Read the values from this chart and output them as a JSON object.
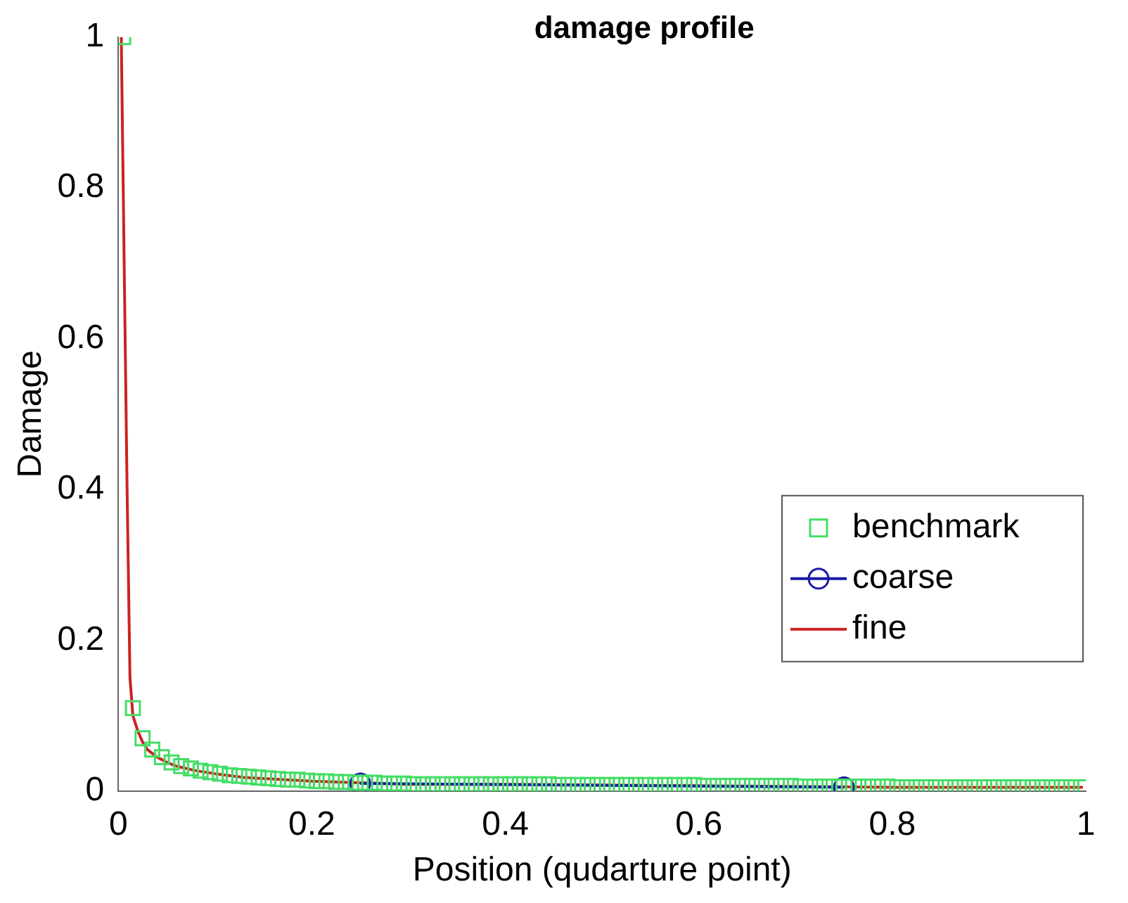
{
  "chart_data": {
    "type": "line",
    "title": "damage profile",
    "xlabel": "Position (qudarture point)",
    "ylabel": "Damage",
    "xlim": [
      0,
      1
    ],
    "ylim": [
      0,
      1
    ],
    "xticks": [
      0,
      0.2,
      0.4,
      0.6,
      0.8,
      1
    ],
    "yticks": [
      0,
      0.2,
      0.4,
      0.6,
      0.8,
      1
    ],
    "grid": false,
    "legend": "bottom right",
    "series": [
      {
        "name": "benchmark",
        "type": "scatter",
        "marker": "square",
        "color": "#44dd66",
        "x": [
          0.005,
          0.015,
          0.025,
          0.035,
          0.045,
          0.055,
          0.065,
          0.075,
          0.085,
          0.095,
          0.105,
          0.115,
          0.125,
          0.135,
          0.145,
          0.155,
          0.165,
          0.175,
          0.185,
          0.195,
          0.205,
          0.215,
          0.225,
          0.235,
          0.245,
          0.255,
          0.265,
          0.275,
          0.285,
          0.295,
          0.305,
          0.315,
          0.325,
          0.335,
          0.345,
          0.355,
          0.365,
          0.375,
          0.385,
          0.395,
          0.405,
          0.415,
          0.425,
          0.435,
          0.445,
          0.455,
          0.465,
          0.475,
          0.485,
          0.495,
          0.505,
          0.515,
          0.525,
          0.535,
          0.545,
          0.555,
          0.565,
          0.575,
          0.585,
          0.595,
          0.605,
          0.615,
          0.625,
          0.635,
          0.645,
          0.655,
          0.665,
          0.675,
          0.685,
          0.695,
          0.705,
          0.715,
          0.725,
          0.735,
          0.745,
          0.755,
          0.765,
          0.775,
          0.785,
          0.795,
          0.805,
          0.815,
          0.825,
          0.835,
          0.845,
          0.855,
          0.865,
          0.875,
          0.885,
          0.895,
          0.905,
          0.915,
          0.925,
          0.935,
          0.945,
          0.955,
          0.965,
          0.975,
          0.985,
          0.995
        ],
        "values": [
          1.0,
          0.11,
          0.07,
          0.055,
          0.045,
          0.038,
          0.033,
          0.03,
          0.027,
          0.025,
          0.023,
          0.021,
          0.02,
          0.019,
          0.018,
          0.017,
          0.016,
          0.015,
          0.015,
          0.014,
          0.013,
          0.013,
          0.012,
          0.012,
          0.011,
          0.011,
          0.011,
          0.01,
          0.01,
          0.01,
          0.009,
          0.009,
          0.009,
          0.009,
          0.009,
          0.009,
          0.009,
          0.009,
          0.009,
          0.009,
          0.009,
          0.009,
          0.009,
          0.009,
          0.009,
          0.008,
          0.008,
          0.008,
          0.008,
          0.008,
          0.008,
          0.008,
          0.008,
          0.008,
          0.008,
          0.008,
          0.008,
          0.008,
          0.008,
          0.008,
          0.007,
          0.007,
          0.007,
          0.007,
          0.007,
          0.007,
          0.007,
          0.007,
          0.007,
          0.007,
          0.006,
          0.006,
          0.006,
          0.006,
          0.006,
          0.006,
          0.006,
          0.006,
          0.006,
          0.006,
          0.005,
          0.005,
          0.005,
          0.005,
          0.005,
          0.005,
          0.005,
          0.005,
          0.005,
          0.005,
          0.005,
          0.005,
          0.005,
          0.005,
          0.005,
          0.005,
          0.005,
          0.005,
          0.005,
          0.005
        ]
      },
      {
        "name": "coarse",
        "type": "line",
        "marker": "circle",
        "color": "#1a1aa8",
        "x": [
          0.25,
          0.75
        ],
        "values": [
          0.01,
          0.005
        ]
      },
      {
        "name": "fine",
        "type": "line",
        "marker": "none",
        "color": "#cc2222",
        "x": [
          0.003,
          0.006,
          0.009,
          0.012,
          0.015,
          0.02,
          0.025,
          0.03,
          0.04,
          0.05,
          0.06,
          0.08,
          0.1,
          0.13,
          0.16,
          0.2,
          0.25,
          0.3,
          0.4,
          0.5,
          0.6,
          0.7,
          0.8,
          0.9,
          0.997
        ],
        "values": [
          1.0,
          0.7,
          0.4,
          0.15,
          0.1,
          0.08,
          0.065,
          0.055,
          0.045,
          0.038,
          0.033,
          0.027,
          0.023,
          0.018,
          0.016,
          0.013,
          0.011,
          0.009,
          0.009,
          0.008,
          0.007,
          0.006,
          0.005,
          0.005,
          0.005
        ]
      }
    ]
  }
}
